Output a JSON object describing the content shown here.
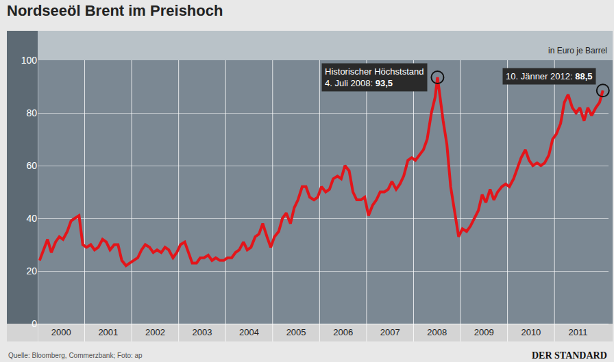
{
  "chart_data": {
    "type": "line",
    "title": "Nordseeöl Brent im Preishoch",
    "y_label": "in Euro je Barrel",
    "source": "Quelle: Bloomberg, Commerzbank; Foto: ap",
    "publisher": "DER STANDARD",
    "color": "#e3151a",
    "grid": true,
    "x": [
      2000.04,
      2000.13,
      2000.21,
      2000.29,
      2000.38,
      2000.46,
      2000.54,
      2000.63,
      2000.71,
      2000.79,
      2000.88,
      2000.96,
      2001.04,
      2001.13,
      2001.21,
      2001.29,
      2001.38,
      2001.46,
      2001.54,
      2001.63,
      2001.71,
      2001.79,
      2001.88,
      2001.96,
      2002.04,
      2002.13,
      2002.21,
      2002.29,
      2002.38,
      2002.46,
      2002.54,
      2002.63,
      2002.71,
      2002.79,
      2002.88,
      2002.96,
      2003.04,
      2003.13,
      2003.21,
      2003.29,
      2003.38,
      2003.46,
      2003.54,
      2003.63,
      2003.71,
      2003.79,
      2003.88,
      2003.96,
      2004.04,
      2004.13,
      2004.21,
      2004.29,
      2004.38,
      2004.46,
      2004.54,
      2004.63,
      2004.71,
      2004.79,
      2004.88,
      2004.96,
      2005.04,
      2005.13,
      2005.21,
      2005.29,
      2005.38,
      2005.46,
      2005.54,
      2005.63,
      2005.71,
      2005.79,
      2005.88,
      2005.96,
      2006.04,
      2006.13,
      2006.21,
      2006.29,
      2006.38,
      2006.46,
      2006.54,
      2006.63,
      2006.71,
      2006.79,
      2006.88,
      2006.96,
      2007.04,
      2007.13,
      2007.21,
      2007.29,
      2007.38,
      2007.46,
      2007.54,
      2007.63,
      2007.71,
      2007.79,
      2007.88,
      2007.96,
      2008.04,
      2008.13,
      2008.21,
      2008.29,
      2008.38,
      2008.46,
      2008.51,
      2008.63,
      2008.71,
      2008.79,
      2008.88,
      2008.96,
      2009.04,
      2009.13,
      2009.21,
      2009.29,
      2009.38,
      2009.46,
      2009.54,
      2009.63,
      2009.71,
      2009.79,
      2009.88,
      2009.96,
      2010.04,
      2010.13,
      2010.21,
      2010.29,
      2010.38,
      2010.46,
      2010.54,
      2010.63,
      2010.71,
      2010.79,
      2010.88,
      2010.96,
      2011.04,
      2011.13,
      2011.21,
      2011.29,
      2011.38,
      2011.46,
      2011.54,
      2011.63,
      2011.71,
      2011.79,
      2011.88,
      2011.96,
      2012.03
    ],
    "values": [
      24,
      28,
      32,
      27,
      31,
      33,
      32,
      35,
      39,
      40,
      41,
      30,
      29,
      30,
      28,
      29,
      32,
      31,
      28,
      30,
      30,
      24,
      22,
      23,
      24,
      25,
      28,
      30,
      29,
      27,
      28,
      27,
      29,
      28,
      25,
      27,
      30,
      31,
      27,
      23,
      23,
      25,
      25,
      26,
      24,
      25,
      24,
      24,
      25,
      25,
      27,
      28,
      31,
      28,
      29,
      33,
      34,
      38,
      33,
      29,
      33,
      35,
      40,
      42,
      38,
      44,
      47,
      52,
      52,
      48,
      47,
      48,
      52,
      50,
      51,
      55,
      56,
      55,
      60,
      58,
      50,
      47,
      47,
      48,
      41,
      45,
      47,
      50,
      50,
      51,
      54,
      51,
      53,
      56,
      62,
      63,
      62,
      64,
      66,
      70,
      80,
      86,
      93.5,
      77,
      68,
      52,
      42,
      33,
      36,
      35,
      37,
      40,
      43,
      49,
      46,
      51,
      47,
      50,
      52,
      53,
      52,
      55,
      59,
      63,
      66,
      62,
      60,
      61,
      60,
      61,
      64,
      70,
      72,
      76,
      84,
      87,
      82,
      80,
      82,
      77,
      82,
      79,
      82,
      84,
      88.5
    ],
    "xlim": [
      2000,
      2012.15
    ],
    "xticks": [
      {
        "value": 2000.5,
        "label": "2000"
      },
      {
        "value": 2001.5,
        "label": "2001"
      },
      {
        "value": 2002.5,
        "label": "2002"
      },
      {
        "value": 2003.5,
        "label": "2003"
      },
      {
        "value": 2004.5,
        "label": "2004"
      },
      {
        "value": 2005.5,
        "label": "2005"
      },
      {
        "value": 2006.5,
        "label": "2006"
      },
      {
        "value": 2007.5,
        "label": "2007"
      },
      {
        "value": 2008.5,
        "label": "2008"
      },
      {
        "value": 2009.5,
        "label": "2009"
      },
      {
        "value": 2010.5,
        "label": "2010"
      },
      {
        "value": 2011.5,
        "label": "2011"
      }
    ],
    "ylim": [
      0,
      100
    ],
    "yticks": [
      0,
      20,
      40,
      60,
      80,
      100
    ],
    "annotations": [
      {
        "text": "Historischer Höchststand",
        "label": "4. Juli 2008:",
        "value_label": "93,5",
        "x": 2008.51,
        "y": 93.5
      },
      {
        "label": "10. Jänner 2012:",
        "value_label": "88,5",
        "x": 2012.03,
        "y": 88.5
      }
    ]
  }
}
